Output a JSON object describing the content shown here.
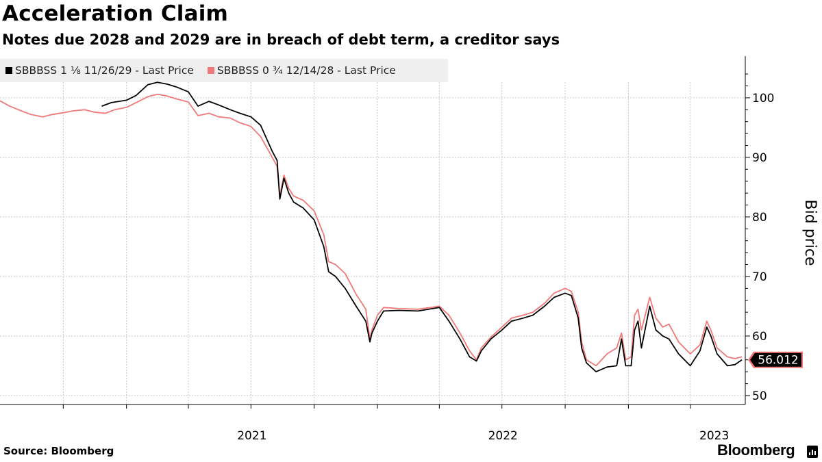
{
  "header": {
    "title": "Acceleration Claim",
    "subtitle": "Notes due 2028 and 2029 are in breach of debt term, a creditor says"
  },
  "footer": {
    "source": "Source: Bloomberg",
    "brand": "Bloomberg",
    "brand_icon": "bloomberg-terminal-icon"
  },
  "chart_data": {
    "type": "line",
    "ylabel": "Bid price",
    "ylim": [
      48.5,
      107
    ],
    "xlim": [
      "2020-07-01",
      "2023-06-20"
    ],
    "y_ticks": [
      50,
      60,
      70,
      80,
      90,
      100
    ],
    "x_tick_labels": [
      {
        "label": "2021",
        "date": "2021-01-01"
      },
      {
        "label": "2022",
        "date": "2022-01-01"
      },
      {
        "label": "2023",
        "date": "2023-01-01"
      }
    ],
    "grid": true,
    "legend_position": "top-left",
    "last_value_label": "56.012",
    "series": [
      {
        "name": "SBBBSS 1 ⅛ 11/26/29 - Last Price",
        "color": "#000000",
        "points": [
          [
            "2020-11-26",
            98.6
          ],
          [
            "2020-12-10",
            99.2
          ],
          [
            "2021-01-01",
            99.6
          ],
          [
            "2021-01-15",
            100.4
          ],
          [
            "2021-02-01",
            102.2
          ],
          [
            "2021-02-15",
            102.6
          ],
          [
            "2021-03-01",
            102.3
          ],
          [
            "2021-03-15",
            101.8
          ],
          [
            "2021-04-01",
            101.0
          ],
          [
            "2021-04-15",
            98.6
          ],
          [
            "2021-05-01",
            99.4
          ],
          [
            "2021-05-15",
            98.8
          ],
          [
            "2021-06-01",
            98.0
          ],
          [
            "2021-06-15",
            97.4
          ],
          [
            "2021-07-01",
            96.8
          ],
          [
            "2021-07-15",
            95.4
          ],
          [
            "2021-08-01",
            91.0
          ],
          [
            "2021-08-08",
            89.5
          ],
          [
            "2021-08-12",
            83.0
          ],
          [
            "2021-08-18",
            86.5
          ],
          [
            "2021-08-25",
            84.0
          ],
          [
            "2021-09-01",
            82.5
          ],
          [
            "2021-09-15",
            81.5
          ],
          [
            "2021-10-01",
            79.5
          ],
          [
            "2021-10-15",
            75.0
          ],
          [
            "2021-10-22",
            70.8
          ],
          [
            "2021-11-01",
            70.0
          ],
          [
            "2021-11-15",
            68.0
          ],
          [
            "2021-12-01",
            65.0
          ],
          [
            "2021-12-15",
            62.5
          ],
          [
            "2021-12-21",
            59.0
          ],
          [
            "2021-12-24",
            60.5
          ],
          [
            "2022-01-01",
            62.5
          ],
          [
            "2022-01-10",
            64.2
          ],
          [
            "2022-02-01",
            64.3
          ],
          [
            "2022-03-01",
            64.2
          ],
          [
            "2022-04-01",
            64.8
          ],
          [
            "2022-04-15",
            62.5
          ],
          [
            "2022-05-01",
            59.5
          ],
          [
            "2022-05-15",
            56.5
          ],
          [
            "2022-05-25",
            55.8
          ],
          [
            "2022-06-01",
            57.5
          ],
          [
            "2022-06-15",
            59.5
          ],
          [
            "2022-07-01",
            61.0
          ],
          [
            "2022-07-15",
            62.5
          ],
          [
            "2022-08-01",
            63.0
          ],
          [
            "2022-08-15",
            63.5
          ],
          [
            "2022-09-01",
            65.0
          ],
          [
            "2022-09-15",
            66.5
          ],
          [
            "2022-10-01",
            67.2
          ],
          [
            "2022-10-10",
            66.8
          ],
          [
            "2022-10-20",
            63.0
          ],
          [
            "2022-10-25",
            58.0
          ],
          [
            "2022-11-01",
            55.5
          ],
          [
            "2022-11-15",
            54.0
          ],
          [
            "2022-12-01",
            54.8
          ],
          [
            "2022-12-15",
            55.0
          ],
          [
            "2022-12-22",
            59.5
          ],
          [
            "2022-12-28",
            55.0
          ],
          [
            "2023-01-05",
            55.0
          ],
          [
            "2023-01-10",
            61.0
          ],
          [
            "2023-01-15",
            62.5
          ],
          [
            "2023-01-20",
            58.0
          ],
          [
            "2023-02-01",
            65.0
          ],
          [
            "2023-02-10",
            61.0
          ],
          [
            "2023-02-20",
            60.0
          ],
          [
            "2023-03-01",
            59.5
          ],
          [
            "2023-03-15",
            57.0
          ],
          [
            "2023-04-01",
            55.0
          ],
          [
            "2023-04-15",
            57.5
          ],
          [
            "2023-04-25",
            61.5
          ],
          [
            "2023-05-01",
            60.0
          ],
          [
            "2023-05-10",
            57.0
          ],
          [
            "2023-05-25",
            55.0
          ],
          [
            "2023-06-05",
            55.2
          ],
          [
            "2023-06-15",
            56.0
          ]
        ]
      },
      {
        "name": "SBBBSS 0 ¾ 12/14/28 - Last Price",
        "color": "#f07878",
        "points": [
          [
            "2020-07-01",
            99.5
          ],
          [
            "2020-07-15",
            98.6
          ],
          [
            "2020-08-01",
            97.8
          ],
          [
            "2020-08-15",
            97.2
          ],
          [
            "2020-09-01",
            96.8
          ],
          [
            "2020-09-15",
            97.2
          ],
          [
            "2020-10-01",
            97.5
          ],
          [
            "2020-10-15",
            97.8
          ],
          [
            "2020-11-01",
            98.0
          ],
          [
            "2020-11-15",
            97.6
          ],
          [
            "2020-12-01",
            97.4
          ],
          [
            "2020-12-15",
            98.0
          ],
          [
            "2021-01-01",
            98.4
          ],
          [
            "2021-01-15",
            99.2
          ],
          [
            "2021-02-01",
            100.2
          ],
          [
            "2021-02-15",
            100.6
          ],
          [
            "2021-03-01",
            100.3
          ],
          [
            "2021-03-15",
            99.8
          ],
          [
            "2021-04-01",
            99.3
          ],
          [
            "2021-04-15",
            97.0
          ],
          [
            "2021-05-01",
            97.4
          ],
          [
            "2021-05-15",
            96.8
          ],
          [
            "2021-06-01",
            96.6
          ],
          [
            "2021-06-15",
            95.8
          ],
          [
            "2021-07-01",
            95.2
          ],
          [
            "2021-07-15",
            93.5
          ],
          [
            "2021-08-01",
            90.0
          ],
          [
            "2021-08-08",
            88.5
          ],
          [
            "2021-08-12",
            83.5
          ],
          [
            "2021-08-18",
            87.0
          ],
          [
            "2021-08-25",
            84.8
          ],
          [
            "2021-09-01",
            83.5
          ],
          [
            "2021-09-15",
            82.8
          ],
          [
            "2021-10-01",
            81.0
          ],
          [
            "2021-10-15",
            77.0
          ],
          [
            "2021-10-22",
            72.5
          ],
          [
            "2021-11-01",
            72.0
          ],
          [
            "2021-11-15",
            70.5
          ],
          [
            "2021-12-01",
            67.0
          ],
          [
            "2021-12-15",
            64.5
          ],
          [
            "2021-12-21",
            59.5
          ],
          [
            "2021-12-24",
            61.0
          ],
          [
            "2022-01-01",
            63.5
          ],
          [
            "2022-01-10",
            64.8
          ],
          [
            "2022-02-01",
            64.6
          ],
          [
            "2022-03-01",
            64.5
          ],
          [
            "2022-04-01",
            65.0
          ],
          [
            "2022-04-15",
            63.5
          ],
          [
            "2022-05-01",
            60.5
          ],
          [
            "2022-05-15",
            57.5
          ],
          [
            "2022-05-25",
            56.0
          ],
          [
            "2022-06-01",
            58.0
          ],
          [
            "2022-06-15",
            59.8
          ],
          [
            "2022-07-01",
            61.5
          ],
          [
            "2022-07-15",
            63.0
          ],
          [
            "2022-08-01",
            63.5
          ],
          [
            "2022-08-15",
            64.0
          ],
          [
            "2022-09-01",
            65.5
          ],
          [
            "2022-09-15",
            67.2
          ],
          [
            "2022-10-01",
            68.0
          ],
          [
            "2022-10-10",
            67.5
          ],
          [
            "2022-10-20",
            64.0
          ],
          [
            "2022-10-25",
            59.0
          ],
          [
            "2022-11-01",
            56.0
          ],
          [
            "2022-11-15",
            55.0
          ],
          [
            "2022-12-01",
            57.0
          ],
          [
            "2022-12-15",
            58.0
          ],
          [
            "2022-12-22",
            60.5
          ],
          [
            "2022-12-28",
            56.0
          ],
          [
            "2023-01-05",
            56.5
          ],
          [
            "2023-01-10",
            63.5
          ],
          [
            "2023-01-15",
            64.5
          ],
          [
            "2023-01-20",
            61.0
          ],
          [
            "2023-02-01",
            66.5
          ],
          [
            "2023-02-10",
            63.0
          ],
          [
            "2023-02-20",
            61.5
          ],
          [
            "2023-03-01",
            62.0
          ],
          [
            "2023-03-15",
            59.0
          ],
          [
            "2023-04-01",
            57.0
          ],
          [
            "2023-04-15",
            58.5
          ],
          [
            "2023-04-25",
            62.5
          ],
          [
            "2023-05-01",
            61.0
          ],
          [
            "2023-05-10",
            58.0
          ],
          [
            "2023-05-25",
            56.5
          ],
          [
            "2023-06-05",
            56.2
          ],
          [
            "2023-06-15",
            56.5
          ]
        ]
      }
    ]
  }
}
